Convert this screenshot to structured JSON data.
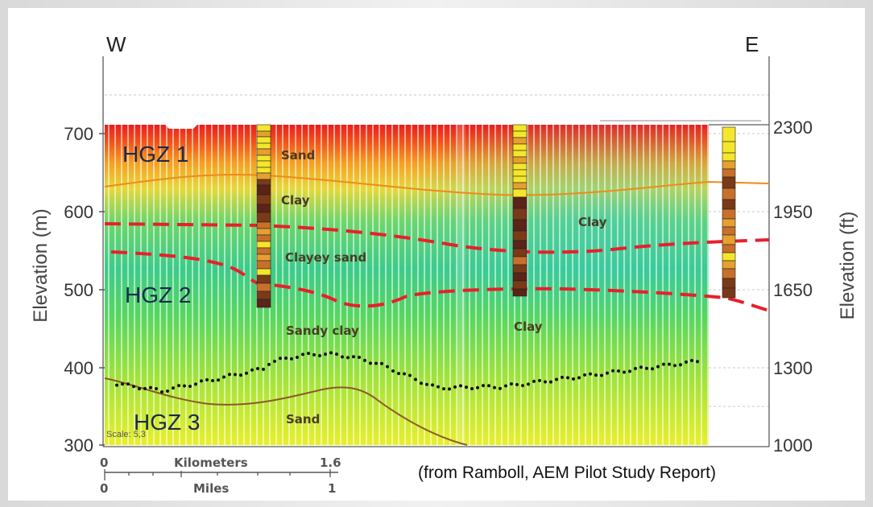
{
  "directions": {
    "west": "W",
    "east": "E"
  },
  "axes": {
    "left_label": "Elevation (m)",
    "right_label": "Elevation (ft)",
    "left_ticks": [
      "700",
      "600",
      "500",
      "400",
      "300"
    ],
    "right_ticks": [
      "2300",
      "1950",
      "1650",
      "1300",
      "1000"
    ]
  },
  "zones": [
    "HGZ 1",
    "HGZ 2",
    "HGZ 3"
  ],
  "lithology_labels": [
    "Sand",
    "Clay",
    "Clay",
    "Clayey sand",
    "Sandy clay",
    "Clay",
    "Sand"
  ],
  "scale_note": "Scale: 5,3",
  "scale_bar": {
    "km_label": "Kilometers",
    "km_start": "0",
    "km_end": "1.6",
    "mi_label": "Miles",
    "mi_start": "0",
    "mi_end": "1"
  },
  "source": "(from Ramboll, AEM Pilot Study Report)",
  "colors": {
    "background": "#e6e6e6",
    "panel": "#ffffff",
    "boundary_dashed": "#e8202a",
    "boundary_orange": "#f08a1a",
    "boundary_brown": "#8a5a28",
    "dots": "#111111"
  }
}
